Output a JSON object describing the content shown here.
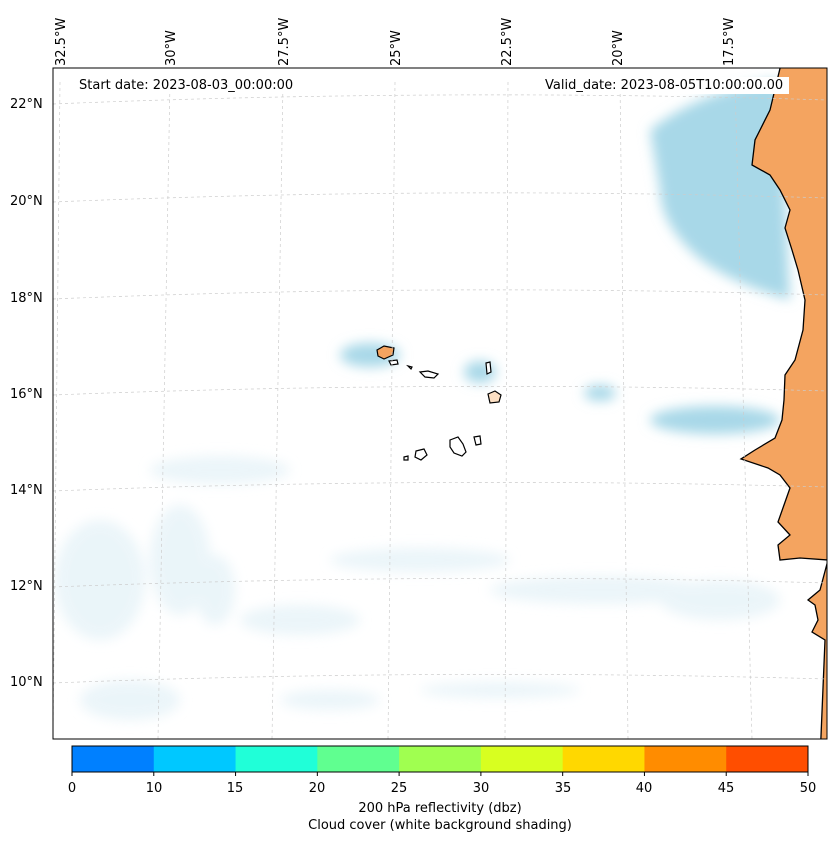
{
  "map": {
    "start_date_text": "Start date: 2023-08-03_00:00:00",
    "valid_date_text": "Valid_date: 2023-08-05T10:00:00.00",
    "longitude_labels": [
      "32.5°W",
      "30°W",
      "27.5°W",
      "25°W",
      "22.5°W",
      "20°W",
      "17.5°W"
    ],
    "latitude_labels": [
      "22°N",
      "20°N",
      "18°N",
      "16°N",
      "14°N",
      "12°N",
      "10°N"
    ],
    "extent": {
      "lon_min": -32.6,
      "lon_max": -15.8,
      "lat_min": 8.9,
      "lat_max": 22.8
    },
    "land_color": "#f4a460",
    "cloud_color": "#a8d8e8",
    "coastline_color": "#000000",
    "grid": "dashed light gray"
  },
  "colorbar": {
    "label_line1": "200 hPa reflectivity (dbz)",
    "label_line2": "Cloud cover (white background shading)",
    "ticks": [
      "0",
      "10",
      "15",
      "20",
      "25",
      "30",
      "35",
      "40",
      "45",
      "50"
    ],
    "colors": [
      "#0080ff",
      "#00c8ff",
      "#20ffd8",
      "#60ff90",
      "#a0ff50",
      "#d8ff20",
      "#ffd800",
      "#ff8c00",
      "#ff4e00"
    ]
  }
}
